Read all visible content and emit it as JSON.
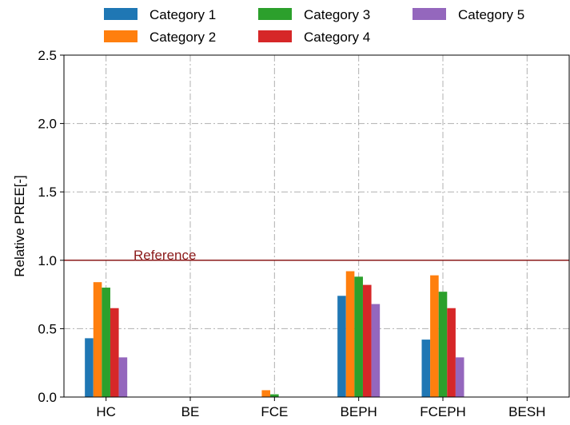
{
  "chart_data": {
    "type": "bar",
    "categories": [
      "HC",
      "BE",
      "FCE",
      "BEPH",
      "FCEPH",
      "BESH"
    ],
    "series": [
      {
        "name": "Category 1",
        "color": "#1f77b4",
        "values": [
          0.43,
          0.0,
          0.0,
          0.74,
          0.42,
          0.0
        ]
      },
      {
        "name": "Category 2",
        "color": "#ff7f0e",
        "values": [
          0.84,
          0.0,
          0.05,
          0.92,
          0.89,
          0.0
        ]
      },
      {
        "name": "Category 3",
        "color": "#2ca02c",
        "values": [
          0.8,
          0.0,
          0.02,
          0.88,
          0.77,
          0.0
        ]
      },
      {
        "name": "Category 4",
        "color": "#d62728",
        "values": [
          0.65,
          0.0,
          0.0,
          0.82,
          0.65,
          0.0
        ]
      },
      {
        "name": "Category 5",
        "color": "#9467bd",
        "values": [
          0.29,
          0.0,
          0.0,
          0.68,
          0.29,
          0.0
        ]
      }
    ],
    "xlabel": "",
    "ylabel": "Relative PREE[-]",
    "ylim": [
      0,
      2.5
    ],
    "yticks": [
      "0.0",
      "0.5",
      "1.0",
      "1.5",
      "2.0",
      "2.5"
    ],
    "grid": true,
    "legend_position": "top",
    "reference_line": {
      "value": 1.0,
      "label": "Reference",
      "color": "#8b1a1a"
    }
  }
}
